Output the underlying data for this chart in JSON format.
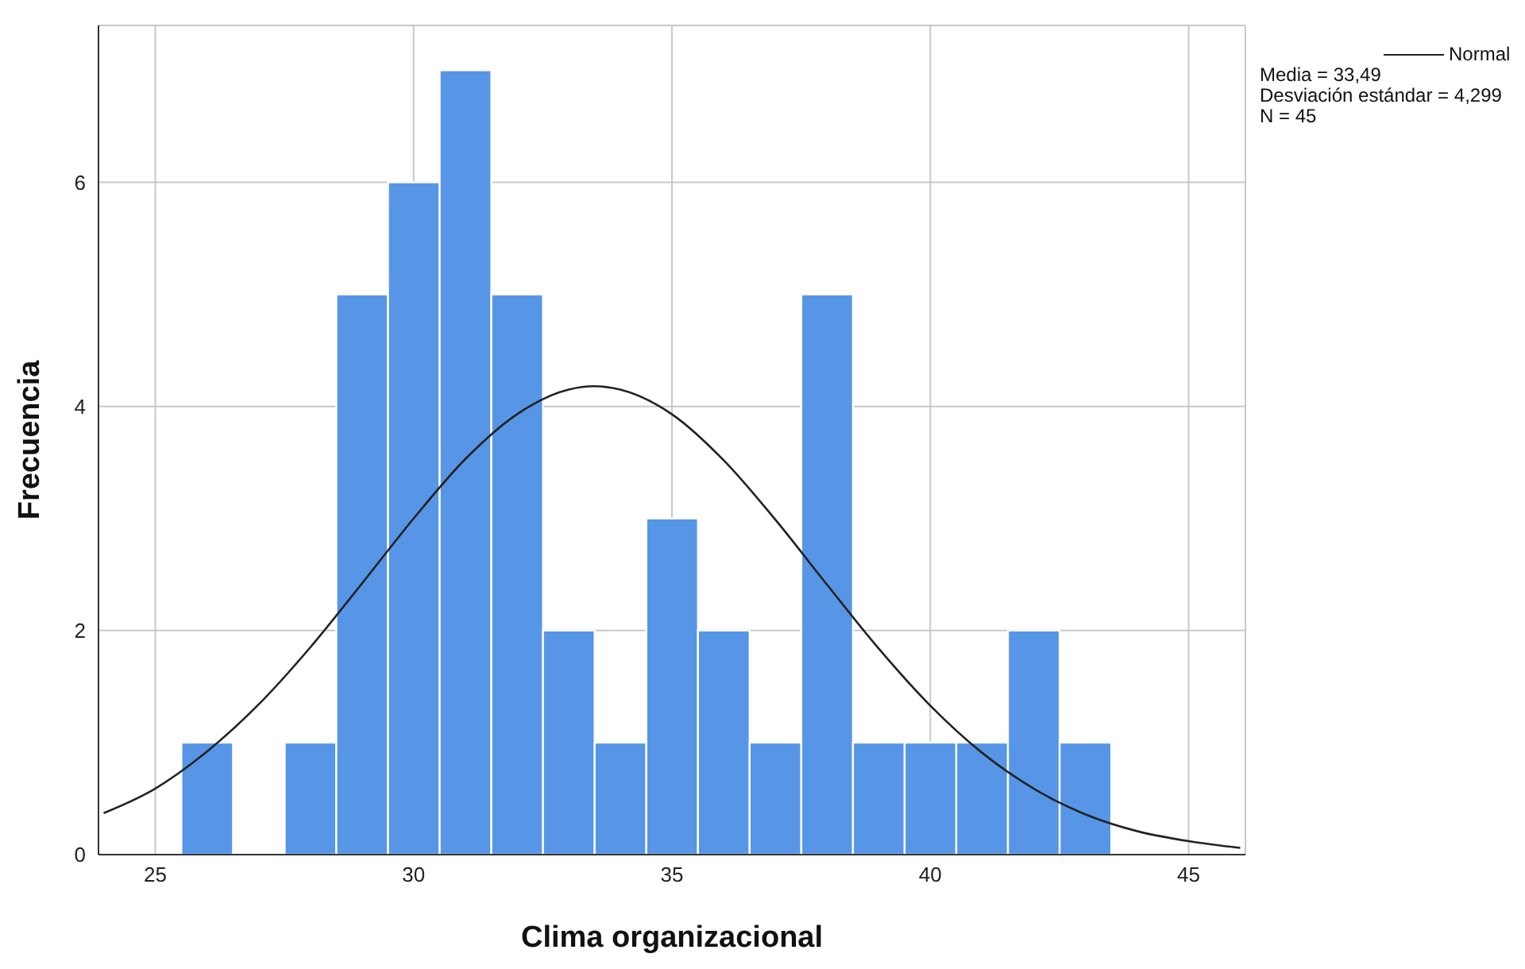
{
  "chart_data": {
    "type": "histogram",
    "xlabel": "Clima organizacional",
    "ylabel": "Frecuencia",
    "bins": [
      25.5,
      26.5,
      27.5,
      28.5,
      29.5,
      30.5,
      31.5,
      32.5,
      33.5,
      34.5,
      35.5,
      36.5,
      37.5,
      38.5,
      39.5,
      40.5,
      41.5,
      42.5,
      43.5
    ],
    "values": [
      1,
      0,
      1,
      5,
      6,
      7,
      5,
      2,
      1,
      3,
      2,
      1,
      5,
      1,
      1,
      1,
      2,
      1
    ],
    "color": "#5795e6",
    "series": [
      {
        "type": "line",
        "name": "Normal",
        "color": "#222222",
        "x": [
          24,
          25,
          26,
          27,
          28,
          29,
          30,
          31,
          32,
          33,
          33.49,
          34,
          35,
          36,
          37,
          38,
          39,
          40,
          41,
          42,
          43,
          44,
          45,
          46
        ],
        "values": [
          0.37,
          0.59,
          0.92,
          1.34,
          1.85,
          2.42,
          3.0,
          3.53,
          3.93,
          4.15,
          4.18,
          4.15,
          3.93,
          3.52,
          2.99,
          2.41,
          1.84,
          1.33,
          0.91,
          0.59,
          0.36,
          0.21,
          0.12,
          0.06
        ]
      }
    ],
    "xlim": [
      23.9,
      46.1
    ],
    "xticks": [
      25,
      30,
      35,
      40,
      45
    ],
    "ylim": [
      0,
      7.4
    ],
    "yticks": [
      0,
      2,
      4,
      6
    ],
    "grid": true,
    "legend": "top right",
    "marker": "none",
    "annotations": [
      "Media = 33,49",
      "Desviación estándar = 4,299",
      "N = 45"
    ]
  }
}
